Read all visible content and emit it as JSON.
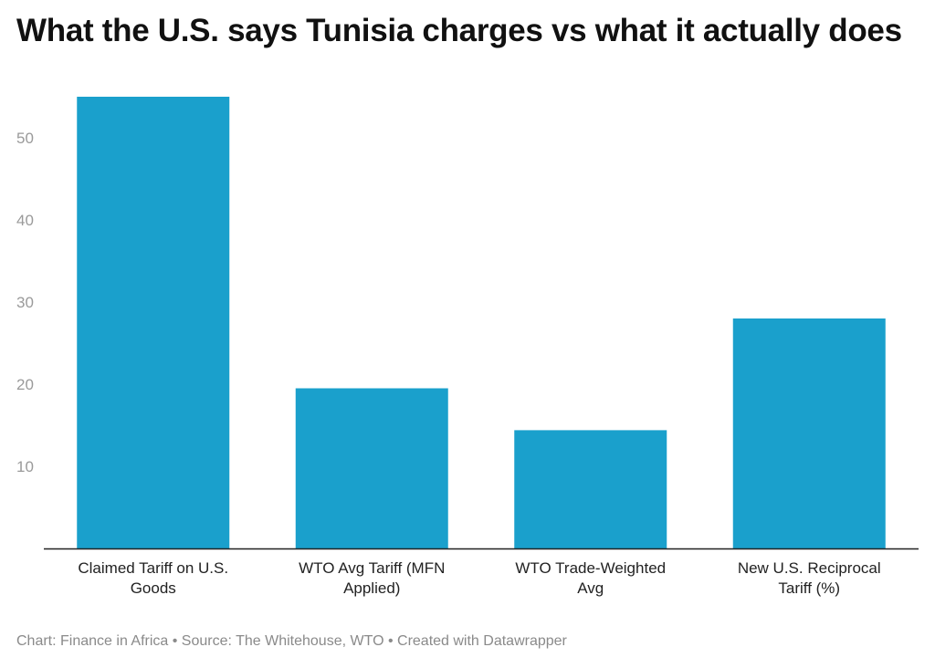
{
  "title": "What the U.S. says Tunisia charges vs what it actually does",
  "footer": "Chart: Finance in Africa • Source: The Whitehouse, WTO • Created with Datawrapper",
  "colors": {
    "bar": "#1aa0cc",
    "axis": "#222222",
    "tick_text": "#9a9a9a"
  },
  "chart_data": {
    "type": "bar",
    "title": "What the U.S. says Tunisia charges vs what it actually does",
    "categories": [
      [
        "Claimed Tariff on U.S.",
        "Goods"
      ],
      [
        "WTO Avg Tariff (MFN",
        "Applied)"
      ],
      [
        "WTO Trade-Weighted",
        "Avg"
      ],
      [
        "New U.S. Reciprocal",
        "Tariff (%)"
      ]
    ],
    "values": [
      55,
      19.5,
      14.4,
      28
    ],
    "yticks": [
      10,
      20,
      30,
      40,
      50
    ],
    "ylim": [
      0,
      55
    ],
    "grid": false,
    "xlabel": "",
    "ylabel": ""
  }
}
